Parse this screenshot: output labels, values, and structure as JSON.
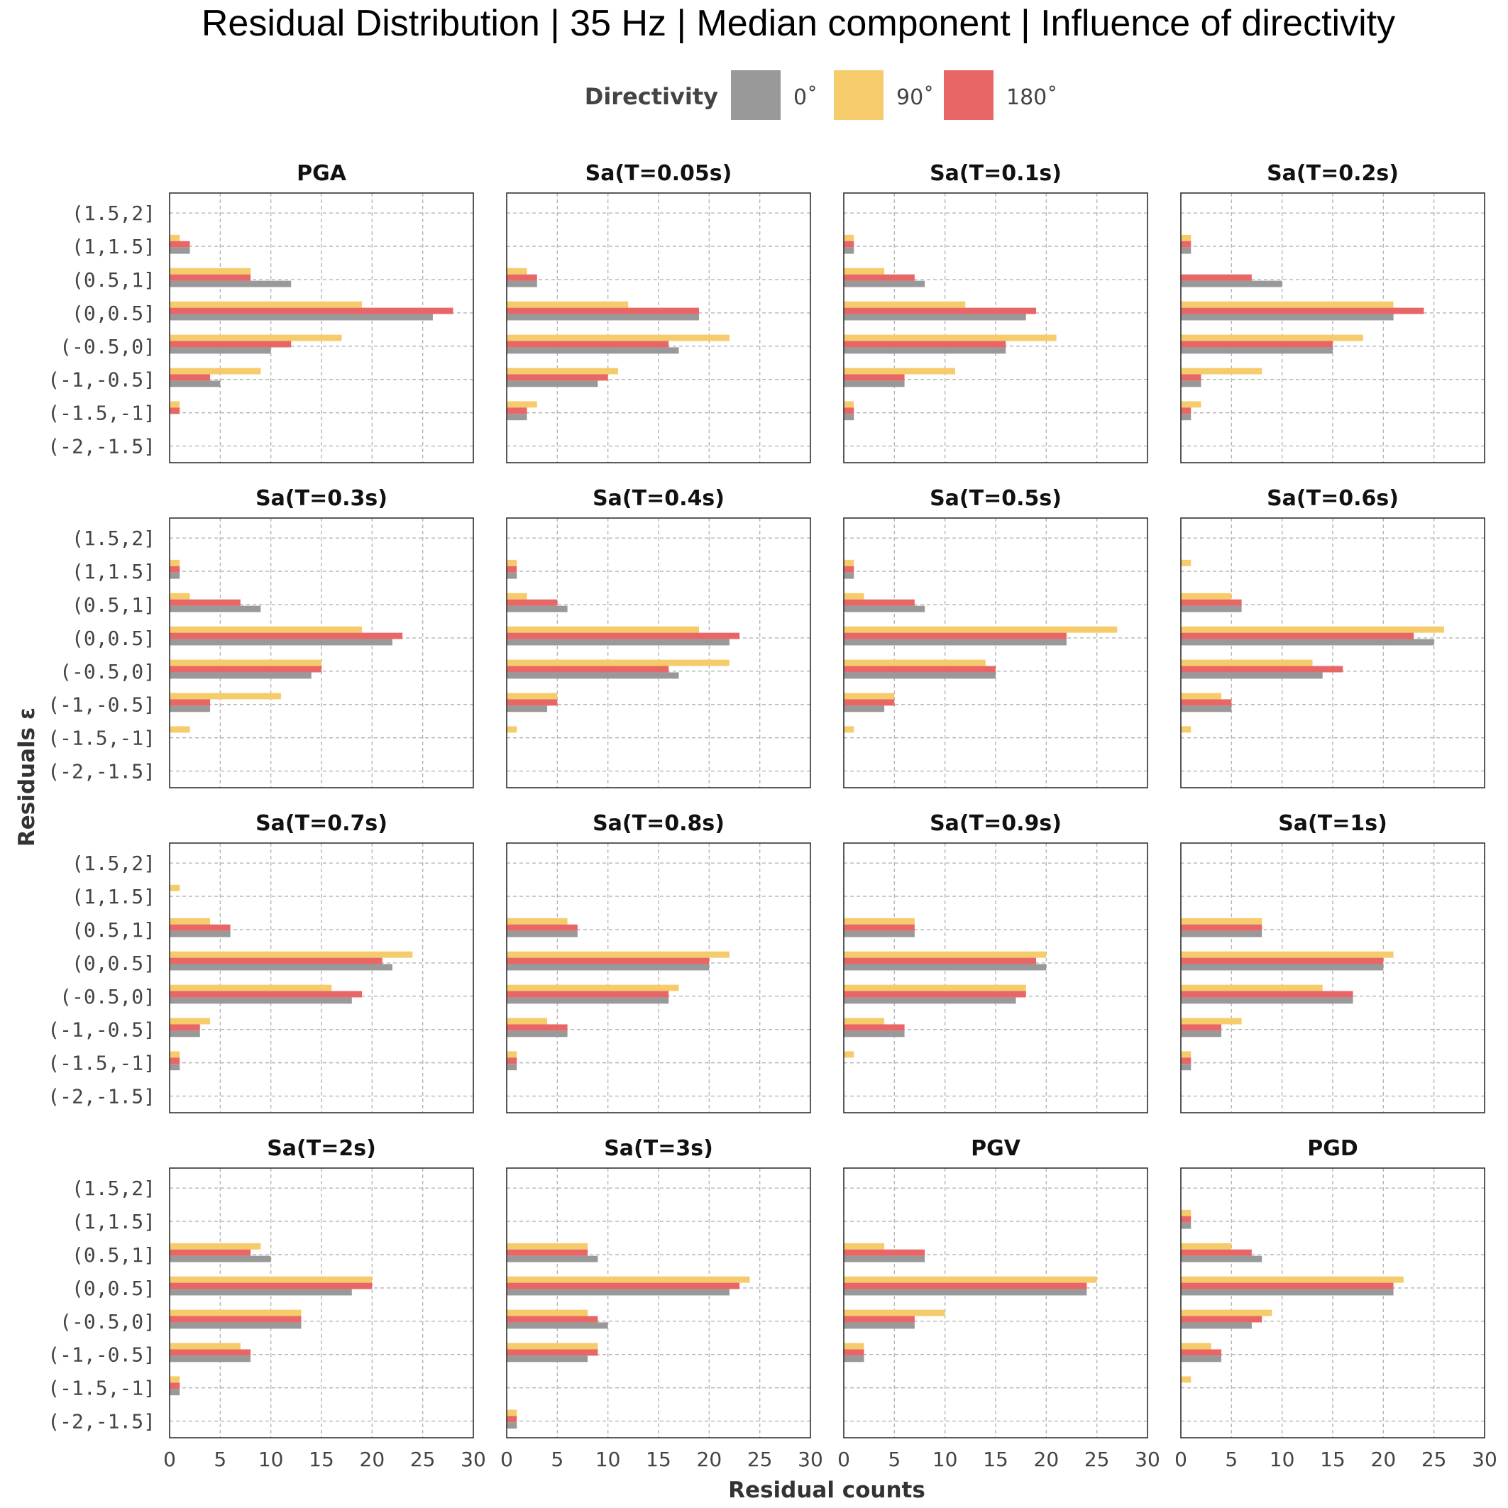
{
  "chart_data": {
    "type": "bar",
    "orientation": "horizontal",
    "title": "Residual Distribution | 35 Hz | Median component | Influence of directivity",
    "xlabel": "Residual counts",
    "ylabel": "Residuals  ε",
    "xlim": [
      0,
      30
    ],
    "xticks": [
      "0",
      "5",
      "10",
      "15",
      "20",
      "25",
      "30"
    ],
    "grid": true,
    "legend": {
      "title": "Directivity",
      "position": "top",
      "entries": [
        {
          "key": "d0",
          "label": "0˚",
          "color": "#999999"
        },
        {
          "key": "d90",
          "label": "90˚",
          "color": "#f6cb6b"
        },
        {
          "key": "d180",
          "label": "180˚",
          "color": "#e86666"
        }
      ]
    },
    "categories": [
      "(1.5,2]",
      "(1,1.5]",
      "(0.5,1]",
      "(0,0.5]",
      "(-0.5,0]",
      "(-1,-0.5]",
      "(-1.5,-1]",
      "(-2,-1.5]"
    ],
    "panels": [
      {
        "title": "PGA",
        "d0": [
          0,
          2,
          12,
          26,
          10,
          5,
          0,
          0
        ],
        "d90": [
          0,
          1,
          8,
          19,
          17,
          9,
          1,
          0
        ],
        "d180": [
          0,
          2,
          8,
          28,
          12,
          4,
          1,
          0
        ]
      },
      {
        "title": "Sa(T=0.05s)",
        "d0": [
          0,
          0,
          3,
          19,
          17,
          9,
          2,
          0
        ],
        "d90": [
          0,
          0,
          2,
          12,
          22,
          11,
          3,
          0
        ],
        "d180": [
          0,
          0,
          3,
          19,
          16,
          10,
          2,
          0
        ]
      },
      {
        "title": "Sa(T=0.1s)",
        "d0": [
          0,
          1,
          8,
          18,
          16,
          6,
          1,
          0
        ],
        "d90": [
          0,
          1,
          4,
          12,
          21,
          11,
          1,
          0
        ],
        "d180": [
          0,
          1,
          7,
          19,
          16,
          6,
          1,
          0
        ]
      },
      {
        "title": "Sa(T=0.2s)",
        "d0": [
          0,
          1,
          10,
          21,
          15,
          2,
          1,
          0
        ],
        "d90": [
          0,
          1,
          0,
          21,
          18,
          8,
          2,
          0
        ],
        "d180": [
          0,
          1,
          7,
          24,
          15,
          2,
          1,
          0
        ]
      },
      {
        "title": "Sa(T=0.3s)",
        "d0": [
          0,
          1,
          9,
          22,
          14,
          4,
          0,
          0
        ],
        "d90": [
          0,
          1,
          2,
          19,
          15,
          11,
          2,
          0
        ],
        "d180": [
          0,
          1,
          7,
          23,
          15,
          4,
          0,
          0
        ]
      },
      {
        "title": "Sa(T=0.4s)",
        "d0": [
          0,
          1,
          6,
          22,
          17,
          4,
          0,
          0
        ],
        "d90": [
          0,
          1,
          2,
          19,
          22,
          5,
          1,
          0
        ],
        "d180": [
          0,
          1,
          5,
          23,
          16,
          5,
          0,
          0
        ]
      },
      {
        "title": "Sa(T=0.5s)",
        "d0": [
          0,
          1,
          8,
          22,
          15,
          4,
          0,
          0
        ],
        "d90": [
          0,
          1,
          2,
          27,
          14,
          5,
          1,
          0
        ],
        "d180": [
          0,
          1,
          7,
          22,
          15,
          5,
          0,
          0
        ]
      },
      {
        "title": "Sa(T=0.6s)",
        "d0": [
          0,
          0,
          6,
          25,
          14,
          5,
          0,
          0
        ],
        "d90": [
          0,
          1,
          5,
          26,
          13,
          4,
          1,
          0
        ],
        "d180": [
          0,
          0,
          6,
          23,
          16,
          5,
          0,
          0
        ]
      },
      {
        "title": "Sa(T=0.7s)",
        "d0": [
          0,
          0,
          6,
          22,
          18,
          3,
          1,
          0
        ],
        "d90": [
          0,
          1,
          4,
          24,
          16,
          4,
          1,
          0
        ],
        "d180": [
          0,
          0,
          6,
          21,
          19,
          3,
          1,
          0
        ]
      },
      {
        "title": "Sa(T=0.8s)",
        "d0": [
          0,
          0,
          7,
          20,
          16,
          6,
          1,
          0
        ],
        "d90": [
          0,
          0,
          6,
          22,
          17,
          4,
          1,
          0
        ],
        "d180": [
          0,
          0,
          7,
          20,
          16,
          6,
          1,
          0
        ]
      },
      {
        "title": "Sa(T=0.9s)",
        "d0": [
          0,
          0,
          7,
          20,
          17,
          6,
          0,
          0
        ],
        "d90": [
          0,
          0,
          7,
          20,
          18,
          4,
          1,
          0
        ],
        "d180": [
          0,
          0,
          7,
          19,
          18,
          6,
          0,
          0
        ]
      },
      {
        "title": "Sa(T=1s)",
        "d0": [
          0,
          0,
          8,
          20,
          17,
          4,
          1,
          0
        ],
        "d90": [
          0,
          0,
          8,
          21,
          14,
          6,
          1,
          0
        ],
        "d180": [
          0,
          0,
          8,
          20,
          17,
          4,
          1,
          0
        ]
      },
      {
        "title": "Sa(T=2s)",
        "d0": [
          0,
          0,
          10,
          18,
          13,
          8,
          1,
          0
        ],
        "d90": [
          0,
          0,
          9,
          20,
          13,
          7,
          1,
          0
        ],
        "d180": [
          0,
          0,
          8,
          20,
          13,
          8,
          1,
          0
        ]
      },
      {
        "title": "Sa(T=3s)",
        "d0": [
          0,
          0,
          9,
          22,
          10,
          8,
          0,
          1
        ],
        "d90": [
          0,
          0,
          8,
          24,
          8,
          9,
          0,
          1
        ],
        "d180": [
          0,
          0,
          8,
          23,
          9,
          9,
          0,
          1
        ]
      },
      {
        "title": "PGV",
        "d0": [
          0,
          0,
          8,
          24,
          7,
          2,
          0,
          0
        ],
        "d90": [
          0,
          0,
          4,
          25,
          10,
          2,
          0,
          0
        ],
        "d180": [
          0,
          0,
          8,
          24,
          7,
          2,
          0,
          0
        ]
      },
      {
        "title": "PGD",
        "d0": [
          0,
          1,
          8,
          21,
          7,
          4,
          0,
          0
        ],
        "d90": [
          0,
          1,
          5,
          22,
          9,
          3,
          1,
          0
        ],
        "d180": [
          0,
          1,
          7,
          21,
          8,
          4,
          0,
          0
        ]
      }
    ]
  }
}
